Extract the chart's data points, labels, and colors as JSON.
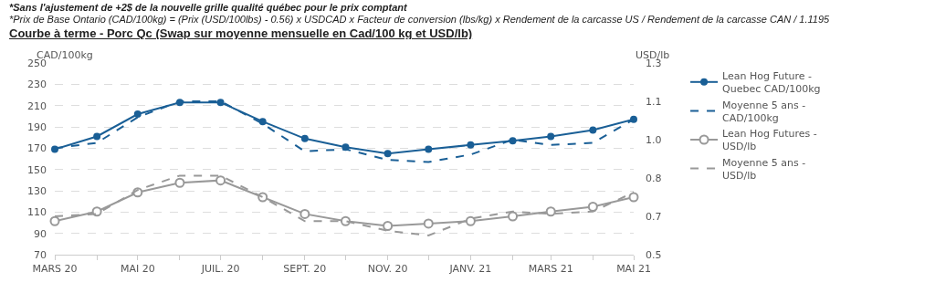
{
  "chart_data": {
    "type": "line",
    "title": "Courbe à terme - Porc Qc (Swap sur moyenne mensuelle en Cad/100 kg et USD/lb)",
    "annotations": [
      "*Sans l'ajustement de +2$ de la nouvelle grille qualité québec pour le prix comptant",
      "*Prix de Base Ontario (CAD/100kg) = (Prix (USD/100lbs) - 0.56) x USDCAD x Facteur de conversion (lbs/kg) x Rendement de la carcasse US / Rendement de la carcasse CAN / 1.1195"
    ],
    "ylabel": "CAD/100kg",
    "y2label": "USD/lb",
    "x": [
      "2020-03",
      "2020-04",
      "2020-05",
      "2020-06",
      "2020-07",
      "2020-08",
      "2020-09",
      "2020-10",
      "2020-11",
      "2020-12",
      "2021-01",
      "2021-02",
      "2021-03",
      "2021-04",
      "2021-05"
    ],
    "xlim": [
      "2020-03",
      "2021-05"
    ],
    "xticks": [
      {
        "value": "2020-03",
        "label": "MARS 20"
      },
      {
        "value": "2020-04",
        "label": null
      },
      {
        "value": "2020-05",
        "label": "MAI 20"
      },
      {
        "value": "2020-06",
        "label": null
      },
      {
        "value": "2020-07",
        "label": "JUIL. 20"
      },
      {
        "value": "2020-08",
        "label": null
      },
      {
        "value": "2020-09",
        "label": "SEPT. 20"
      },
      {
        "value": "2020-10",
        "label": null
      },
      {
        "value": "2020-11",
        "label": "NOV. 20"
      },
      {
        "value": "2020-12",
        "label": null
      },
      {
        "value": "2021-01",
        "label": "JANV. 21"
      },
      {
        "value": "2021-02",
        "label": null
      },
      {
        "value": "2021-03",
        "label": "MARS 21"
      },
      {
        "value": "2021-04",
        "label": null
      },
      {
        "value": "2021-05",
        "label": "MAI 21"
      }
    ],
    "ylim": [
      70,
      250
    ],
    "yticks": [
      70,
      90,
      110,
      130,
      150,
      170,
      190,
      210,
      230,
      250
    ],
    "y2lim": [
      0.5,
      1.3
    ],
    "y2ticks": [
      0.5,
      {
        "value": 0.66,
        "label": "0.7"
      },
      {
        "value": 0.82,
        "label": "0.8"
      },
      {
        "value": 0.98,
        "label": "1.0"
      },
      {
        "value": 1.14,
        "label": "1.1"
      },
      1.3
    ],
    "grid": "y",
    "legend": "right",
    "series": [
      {
        "name": "Lean Hog Future - Quebec CAD/100kg",
        "color": "#1a5f96",
        "marker": "circle",
        "line_style": "solid",
        "values": [
          169,
          181,
          202,
          213,
          213,
          195,
          179,
          171,
          165,
          169,
          173,
          177,
          181,
          187,
          197
        ]
      },
      {
        "name": "Moyenne 5 ans - CAD/100kg",
        "color": "#1a5f96",
        "marker": "none",
        "line_style": "dashed",
        "values": [
          170,
          175,
          199,
          214,
          214,
          193,
          167,
          169,
          159,
          157,
          164,
          178,
          173,
          175,
          197
        ]
      },
      {
        "name": "Lean Hog Futures - USD/lb",
        "color": "#999999",
        "marker": "circle-open",
        "line_style": "solid",
        "axis": "y2",
        "values": [
          0.64,
          0.68,
          0.76,
          0.8,
          0.81,
          0.74,
          0.67,
          0.64,
          0.62,
          0.63,
          0.64,
          0.66,
          0.68,
          0.7,
          0.74
        ]
      },
      {
        "name": "Moyenne 5 ans - USD/lb",
        "color": "#999999",
        "marker": "none",
        "line_style": "dashed",
        "axis": "y2",
        "values": [
          0.66,
          0.67,
          0.77,
          0.83,
          0.83,
          0.74,
          0.64,
          0.64,
          0.6,
          0.58,
          0.65,
          0.68,
          0.67,
          0.68,
          0.76
        ]
      }
    ]
  }
}
